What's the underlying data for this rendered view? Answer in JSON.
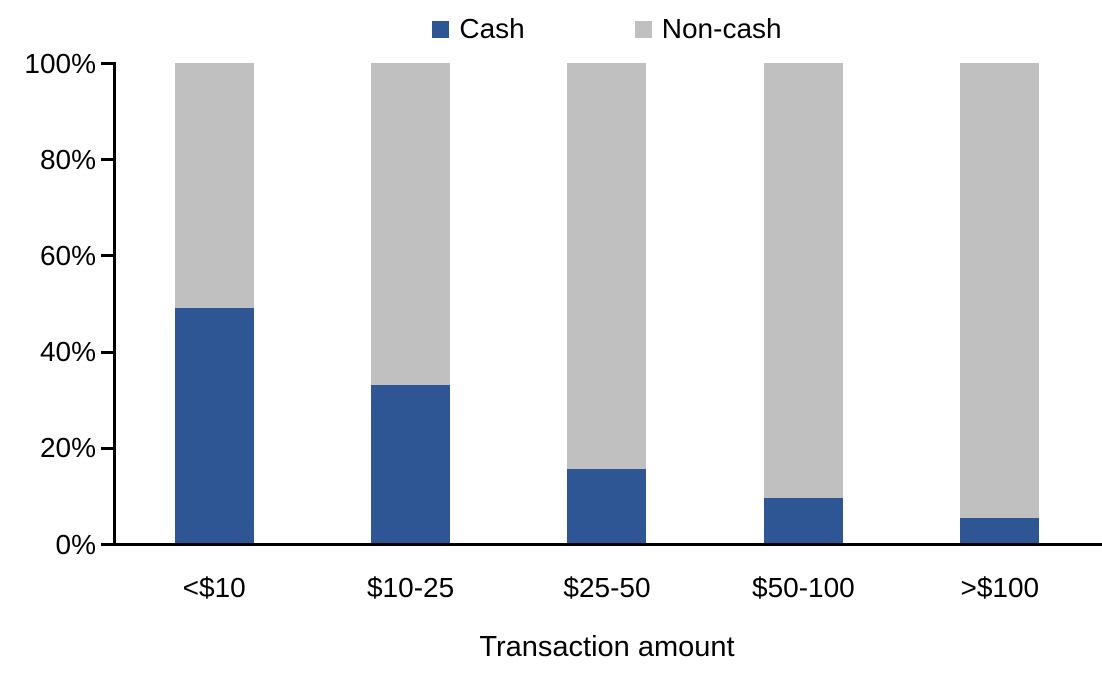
{
  "chart_data": {
    "type": "bar",
    "stacked": true,
    "orientation": "vertical",
    "title": "",
    "xlabel": "Transaction amount",
    "ylabel": "",
    "categories": [
      "<$10",
      "$10-25",
      "$25-50",
      "$50-100",
      ">$100"
    ],
    "series": [
      {
        "name": "Cash",
        "color": "#2E5694",
        "values": [
          49,
          33,
          15.5,
          9.5,
          5.5
        ]
      },
      {
        "name": "Non-cash",
        "color": "#C0C0C0",
        "values": [
          51,
          67,
          84.5,
          90.5,
          94.5
        ]
      }
    ],
    "ylim": [
      0,
      100
    ],
    "yticks": [
      0,
      20,
      40,
      60,
      80,
      100
    ],
    "ytick_labels": [
      "0%",
      "20%",
      "40%",
      "60%",
      "80%",
      "100%"
    ],
    "legend_position": "top",
    "grid": false,
    "axis_color": "#000000",
    "background_color": "#ffffff"
  }
}
